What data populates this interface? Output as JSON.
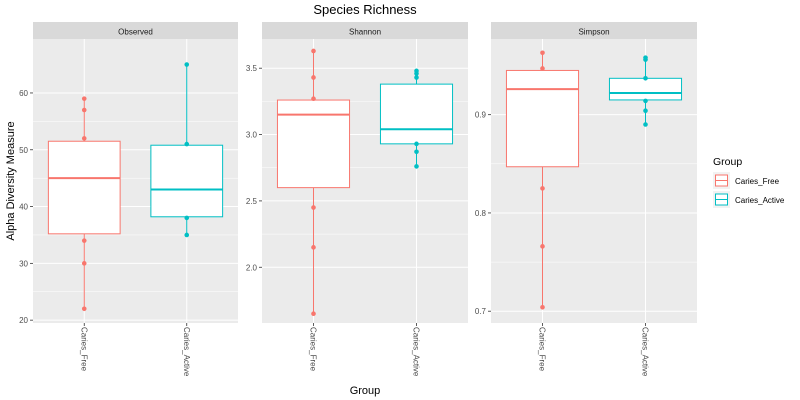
{
  "chart_data": {
    "type": "boxplot",
    "title": "Species Richness",
    "xlabel": "Group",
    "ylabel": "Alpha Diversity Measure",
    "categories": [
      "Caries_Free",
      "Caries_Active"
    ],
    "legend": {
      "title": "Group",
      "position": "right",
      "entries": [
        {
          "name": "Caries_Free",
          "color": "#F8766D"
        },
        {
          "name": "Caries_Active",
          "color": "#00BFC4"
        }
      ]
    },
    "panel_background": "#EBEBEB",
    "strip_background": "#D9D9D9",
    "grid": true,
    "panels": [
      {
        "name": "Observed",
        "ylim": [
          19.5,
          69.5
        ],
        "yticks": [
          20,
          30,
          40,
          50,
          60
        ],
        "ytick_labels": [
          "20",
          "30",
          "40",
          "50",
          "60"
        ],
        "groups": [
          {
            "category": "Caries_Free",
            "q1": 35.2,
            "median": 45.0,
            "q3": 51.5,
            "whisker_low": 22,
            "whisker_high": 59,
            "points": [
              22,
              30,
              34,
              52,
              57,
              59
            ]
          },
          {
            "category": "Caries_Active",
            "q1": 38.2,
            "median": 43.0,
            "q3": 50.8,
            "whisker_low": 35,
            "whisker_high": 65,
            "points": [
              35,
              38,
              51,
              65
            ]
          }
        ]
      },
      {
        "name": "Shannon",
        "ylim": [
          1.58,
          3.72
        ],
        "yticks": [
          2.0,
          2.5,
          3.0,
          3.5
        ],
        "ytick_labels": [
          "2.0",
          "2.5",
          "3.0",
          "3.5"
        ],
        "groups": [
          {
            "category": "Caries_Free",
            "q1": 2.6,
            "median": 3.15,
            "q3": 3.26,
            "whisker_low": 1.65,
            "whisker_high": 3.63,
            "points": [
              1.65,
              2.15,
              2.45,
              3.27,
              3.43,
              3.63
            ]
          },
          {
            "category": "Caries_Active",
            "q1": 2.93,
            "median": 3.04,
            "q3": 3.38,
            "whisker_low": 2.76,
            "whisker_high": 3.48,
            "points": [
              2.76,
              2.87,
              2.93,
              3.43,
              3.46,
              3.48
            ]
          }
        ]
      },
      {
        "name": "Simpson",
        "ylim": [
          0.688,
          0.977
        ],
        "yticks": [
          0.7,
          0.8,
          0.9
        ],
        "ytick_labels": [
          "0.7",
          "0.8",
          "0.9"
        ],
        "groups": [
          {
            "category": "Caries_Free",
            "q1": 0.847,
            "median": 0.926,
            "q3": 0.945,
            "whisker_low": 0.704,
            "whisker_high": 0.963,
            "points": [
              0.704,
              0.766,
              0.825,
              0.947,
              0.963
            ]
          },
          {
            "category": "Caries_Active",
            "q1": 0.915,
            "median": 0.922,
            "q3": 0.937,
            "whisker_low": 0.89,
            "whisker_high": 0.958,
            "points": [
              0.89,
              0.904,
              0.914,
              0.937,
              0.956,
              0.958
            ]
          }
        ]
      }
    ]
  }
}
